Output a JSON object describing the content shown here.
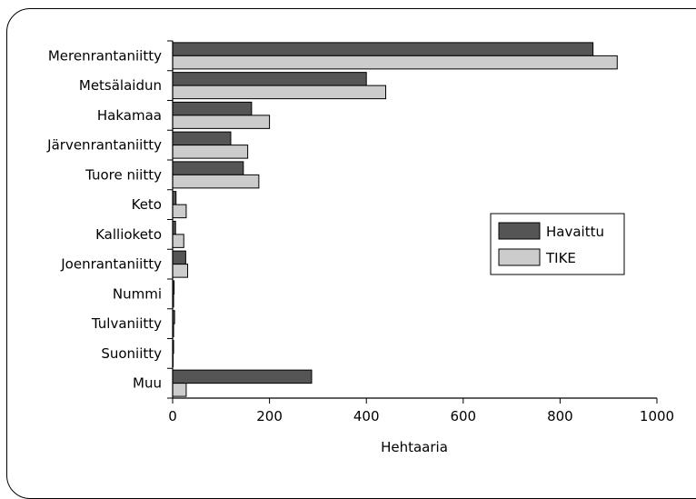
{
  "chart_data": {
    "type": "bar",
    "orientation": "horizontal",
    "categories": [
      "Merenrantaniitty",
      "Metsälaidun",
      "Hakamaa",
      "Järvenrantaniitty",
      "Tuore niitty",
      "Keto",
      "Kallioketo",
      "Joenrantaniitty",
      "Nummi",
      "Tulvaniitty",
      "Suoniitty",
      "Muu"
    ],
    "series": [
      {
        "name": "Havaittu",
        "color": "#555555",
        "values": [
          868,
          400,
          163,
          120,
          146,
          7,
          6,
          27,
          3,
          4,
          2,
          287
        ]
      },
      {
        "name": "TIKE",
        "color": "#cccccc",
        "values": [
          918,
          440,
          200,
          155,
          178,
          28,
          23,
          31,
          2,
          2,
          1,
          28
        ]
      }
    ],
    "xlabel": "Hehtaaria",
    "xlim": [
      0,
      1000
    ],
    "xticks": [
      "0",
      "200",
      "400",
      "600",
      "800",
      "1000"
    ],
    "legend_position": "right",
    "grid": false
  }
}
